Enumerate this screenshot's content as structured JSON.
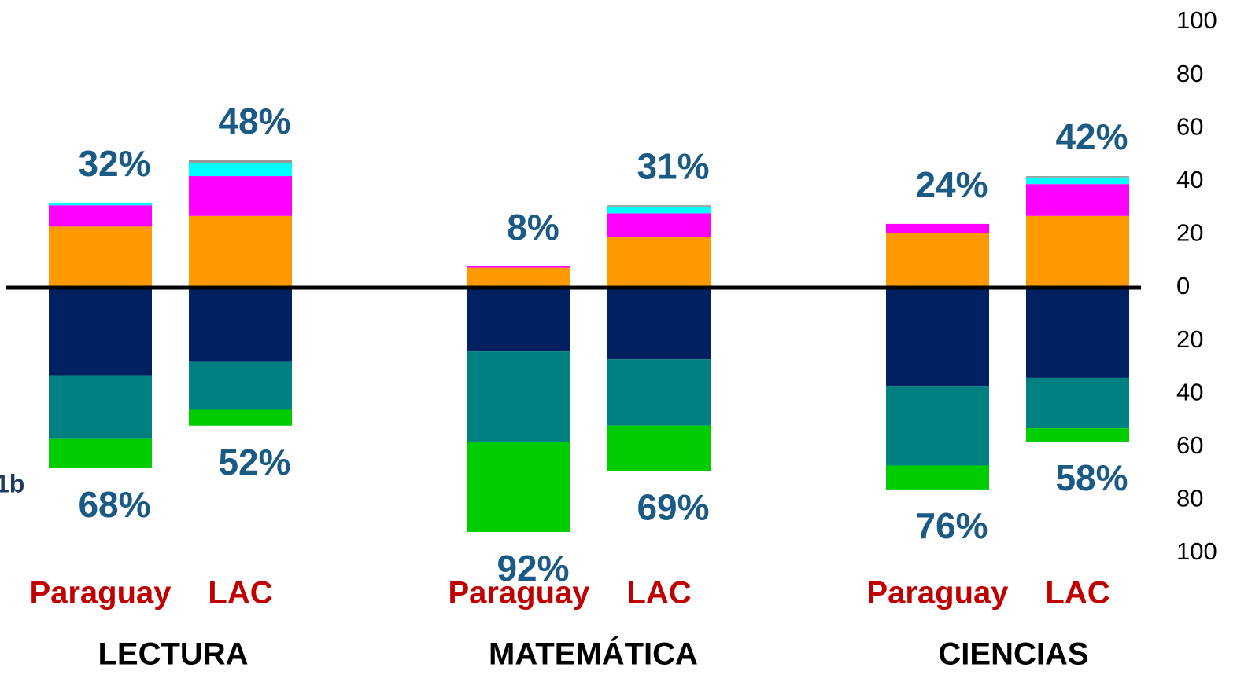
{
  "chart_data": {
    "type": "diverging_stacked_bar",
    "categories": [
      "Paraguay",
      "LAC",
      "Paraguay",
      "LAC",
      "Paraguay",
      "LAC"
    ],
    "groups": [
      "LECTURA",
      "MATEMÁTICA",
      "CIENCIAS"
    ],
    "series": [
      {
        "color": "#ff9900",
        "values": [
          23,
          27,
          7.5,
          19,
          20.5,
          27
        ]
      },
      {
        "color": "#ff00ff",
        "values": [
          8,
          15,
          0.5,
          9,
          3.5,
          12
        ]
      },
      {
        "color": "#00ffff",
        "values": [
          1,
          5,
          0,
          2.5,
          0,
          2.5
        ]
      },
      {
        "color": "#999999",
        "values": [
          0,
          1,
          0,
          0.5,
          0,
          0.5
        ]
      },
      {
        "color": "#002060",
        "values": [
          -33,
          -28,
          -24,
          -27,
          -37,
          -34
        ]
      },
      {
        "color": "#008080",
        "values": [
          -24,
          -18,
          -34,
          -25,
          -30,
          -19
        ]
      },
      {
        "color": "#00cc00",
        "values": [
          -11,
          -6,
          -34,
          -17,
          -9,
          -5
        ]
      }
    ],
    "top_totals": [
      32,
      48,
      8,
      31,
      24,
      42
    ],
    "top_totals_labels": [
      "32%",
      "48%",
      "8%",
      "31%",
      "24%",
      "42%"
    ],
    "bottom_totals": [
      -68,
      -52,
      -92,
      -69,
      -76,
      -58
    ],
    "bottom_totals_labels": [
      "68%",
      "52%",
      "92%",
      "69%",
      "76%",
      "58%"
    ],
    "annotation": "1b",
    "ylim": [
      -100,
      100
    ],
    "yticks": [
      100,
      80,
      60,
      40,
      20,
      0,
      {
        "value": -20,
        "label": "20"
      },
      {
        "value": -40,
        "label": "40"
      },
      {
        "value": -60,
        "label": "60"
      },
      {
        "value": -80,
        "label": "80"
      },
      {
        "value": -100,
        "label": "100"
      }
    ]
  }
}
